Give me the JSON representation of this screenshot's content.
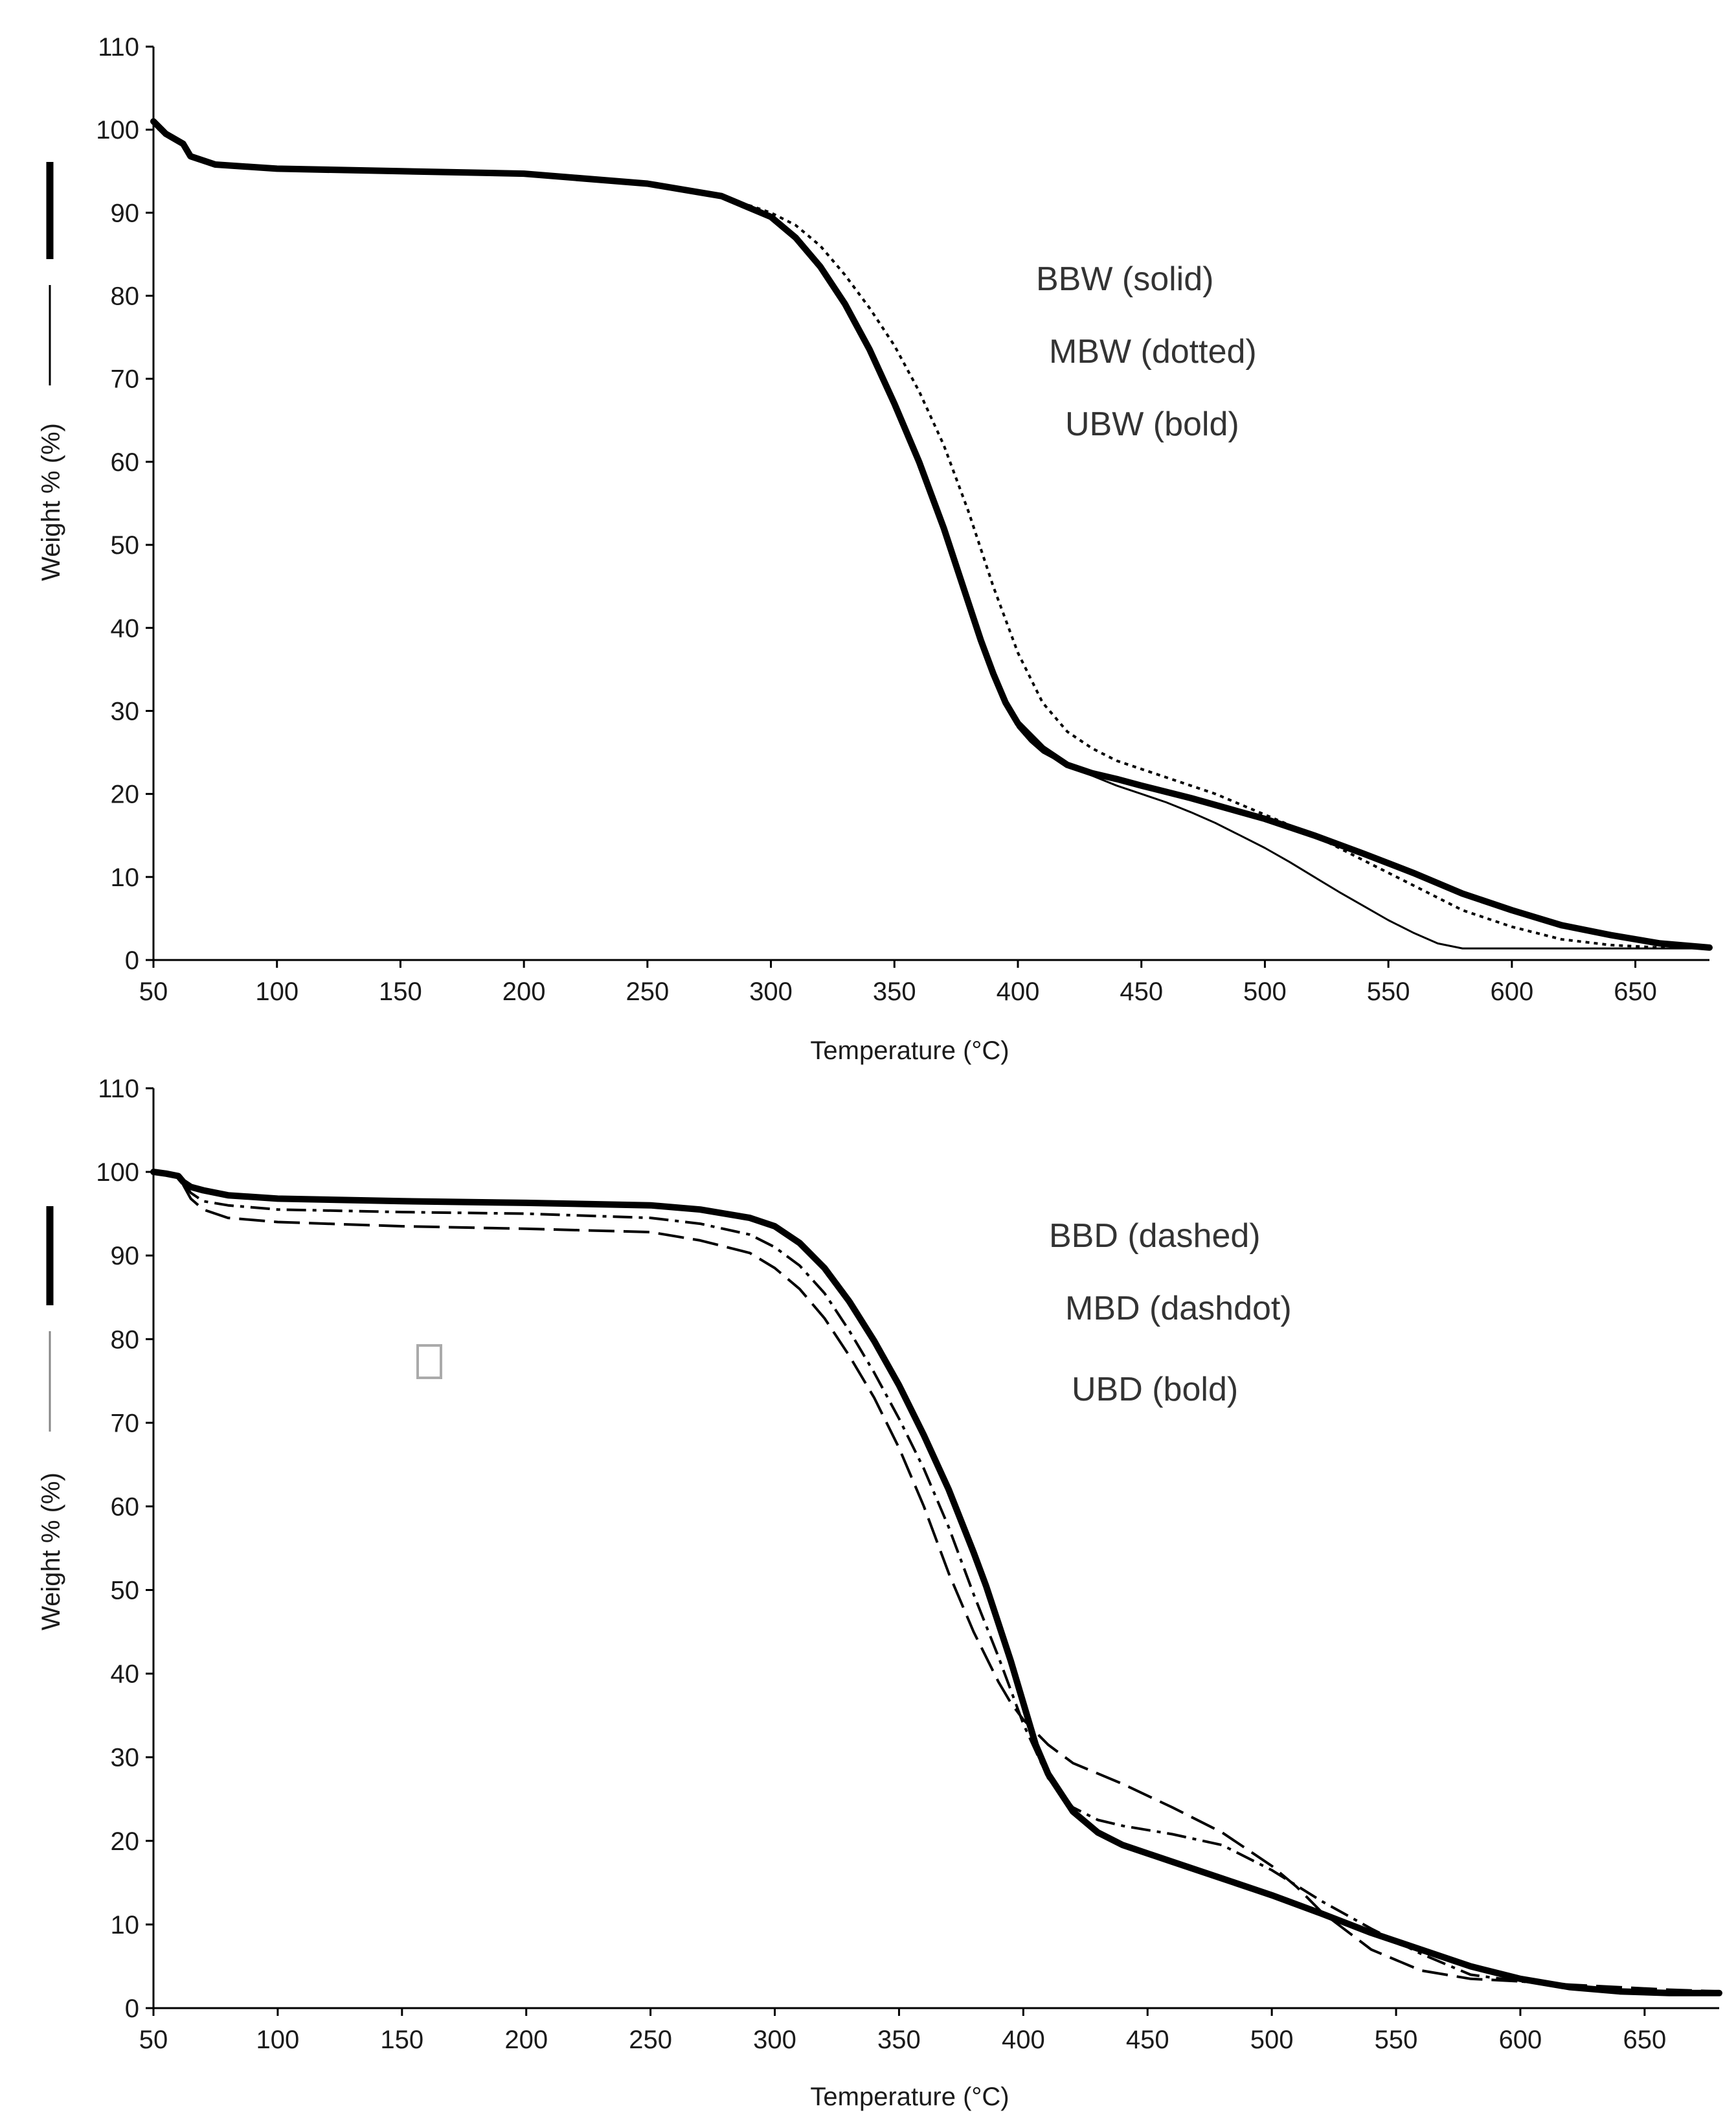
{
  "colors": {
    "background": "#ffffff",
    "axis": "#000000",
    "series": "#000000",
    "annotation_text": "#333333"
  },
  "chart_data": [
    {
      "type": "line",
      "title": "",
      "xlabel": "Temperature (°C)",
      "ylabel": "Weight % (%)",
      "xlim": [
        50,
        680
      ],
      "ylim": [
        0,
        110
      ],
      "x_ticks": [
        "50",
        "100",
        "150",
        "200",
        "250",
        "300",
        "350",
        "400",
        "450",
        "500",
        "550",
        "600",
        "650"
      ],
      "y_ticks": [
        "0",
        "10",
        "20",
        "30",
        "40",
        "50",
        "60",
        "70",
        "80",
        "90",
        "100",
        "110"
      ],
      "grid": false,
      "annotations": [
        "BBW (solid)",
        "MBW (dotted)",
        "UBW (bold)"
      ],
      "series": [
        {
          "name": "BBW",
          "style": "solid",
          "x": [
            50,
            52,
            55,
            58,
            62,
            65,
            75,
            100,
            150,
            200,
            250,
            280,
            300,
            310,
            320,
            330,
            340,
            350,
            360,
            370,
            375,
            380,
            385,
            390,
            395,
            400,
            405,
            410,
            415,
            420,
            430,
            440,
            450,
            460,
            470,
            480,
            490,
            500,
            510,
            520,
            530,
            540,
            550,
            560,
            570,
            580,
            585,
            600,
            620,
            650,
            680
          ],
          "y": [
            101,
            100,
            99.5,
            99.3,
            98.3,
            96.8,
            95.8,
            95.3,
            95.0,
            94.7,
            93.5,
            92.0,
            89.5,
            87.0,
            83.5,
            79.0,
            73.5,
            67.0,
            60.0,
            52.0,
            47.5,
            43.0,
            38.5,
            34.0,
            30.5,
            28.0,
            26.3,
            25.0,
            24.2,
            23.5,
            22.2,
            21.0,
            20.0,
            19.0,
            17.8,
            16.5,
            15.0,
            13.5,
            11.8,
            10.0,
            8.2,
            6.5,
            4.8,
            3.3,
            2.0,
            1.4,
            1.4,
            1.4,
            1.4,
            1.4,
            1.4
          ]
        },
        {
          "name": "MBW",
          "style": "dotted",
          "x": [
            50,
            55,
            62,
            65,
            75,
            100,
            150,
            200,
            250,
            280,
            300,
            310,
            320,
            330,
            340,
            350,
            360,
            370,
            380,
            390,
            400,
            410,
            420,
            430,
            440,
            450,
            460,
            470,
            480,
            500,
            520,
            540,
            560,
            580,
            600,
            620,
            640,
            660,
            680
          ],
          "y": [
            101,
            99.5,
            98.3,
            96.8,
            95.8,
            95.3,
            95.0,
            94.7,
            93.5,
            92.0,
            90.0,
            88.5,
            86.0,
            82.5,
            78.5,
            74.0,
            68.5,
            62.0,
            54.0,
            45.0,
            37.0,
            31.0,
            27.5,
            25.5,
            24.0,
            23.0,
            22.0,
            21.0,
            20.0,
            17.5,
            15.0,
            12.0,
            9.0,
            6.0,
            4.0,
            2.5,
            1.8,
            1.5,
            1.5
          ]
        },
        {
          "name": "UBW",
          "style": "bold",
          "x": [
            50,
            55,
            62,
            65,
            75,
            100,
            150,
            200,
            250,
            280,
            300,
            310,
            320,
            330,
            340,
            350,
            360,
            370,
            375,
            380,
            385,
            390,
            395,
            400,
            410,
            420,
            430,
            440,
            450,
            470,
            500,
            520,
            540,
            560,
            580,
            600,
            620,
            640,
            660,
            680
          ],
          "y": [
            101,
            99.5,
            98.3,
            96.8,
            95.8,
            95.3,
            95.0,
            94.7,
            93.5,
            92.0,
            89.5,
            87.0,
            83.5,
            79.0,
            73.5,
            67.0,
            60.0,
            52.0,
            47.5,
            43.0,
            38.5,
            34.5,
            31.0,
            28.5,
            25.5,
            23.5,
            22.5,
            21.8,
            21.0,
            19.5,
            17.0,
            15.0,
            12.8,
            10.5,
            8.0,
            6.0,
            4.2,
            3.0,
            2.0,
            1.5
          ]
        }
      ]
    },
    {
      "type": "line",
      "title": "",
      "xlabel": "Temperature (°C)",
      "ylabel": "Weight % (%)",
      "xlim": [
        50,
        680
      ],
      "ylim": [
        0,
        110
      ],
      "x_ticks": [
        "50",
        "100",
        "150",
        "200",
        "250",
        "300",
        "350",
        "400",
        "450",
        "500",
        "550",
        "600",
        "650"
      ],
      "y_ticks": [
        "0",
        "10",
        "20",
        "30",
        "40",
        "50",
        "60",
        "70",
        "80",
        "90",
        "100",
        "110"
      ],
      "grid": false,
      "annotations": [
        "BBD (dashed)",
        "MBD (dashdot)",
        "UBD (bold)"
      ],
      "series": [
        {
          "name": "BBD",
          "style": "dashed",
          "x": [
            50,
            55,
            60,
            65,
            70,
            80,
            100,
            150,
            200,
            250,
            270,
            290,
            300,
            310,
            320,
            330,
            340,
            350,
            360,
            370,
            380,
            390,
            395,
            400,
            410,
            420,
            440,
            460,
            480,
            500,
            510,
            520,
            540,
            560,
            580,
            600,
            620,
            640,
            660,
            680
          ],
          "y": [
            100,
            99.8,
            99.5,
            96.8,
            95.5,
            94.5,
            94.0,
            93.5,
            93.2,
            92.8,
            91.8,
            90.3,
            88.5,
            86.0,
            82.5,
            78.0,
            73.0,
            67.0,
            60.0,
            52.0,
            45.0,
            39.0,
            36.5,
            34.5,
            31.5,
            29.3,
            26.8,
            24.0,
            21.0,
            17.0,
            14.5,
            11.5,
            7.0,
            4.5,
            3.5,
            3.2,
            2.8,
            2.5,
            2.2,
            2.0
          ]
        },
        {
          "name": "MBD",
          "style": "dashdot",
          "x": [
            50,
            55,
            60,
            65,
            70,
            80,
            100,
            150,
            200,
            250,
            270,
            290,
            300,
            310,
            320,
            330,
            340,
            350,
            360,
            370,
            380,
            390,
            400,
            410,
            420,
            430,
            440,
            460,
            480,
            500,
            520,
            540,
            560,
            580,
            600,
            620,
            640,
            660,
            680
          ],
          "y": [
            100,
            99.8,
            99.5,
            97.5,
            96.5,
            96.0,
            95.5,
            95.2,
            95.0,
            94.5,
            93.8,
            92.5,
            91.0,
            88.8,
            85.5,
            81.0,
            76.0,
            70.5,
            64.5,
            57.5,
            49.5,
            42.0,
            34.0,
            27.5,
            24.0,
            22.5,
            21.8,
            20.8,
            19.5,
            16.5,
            12.8,
            9.5,
            6.5,
            4.0,
            3.2,
            2.6,
            2.2,
            2.0,
            2.0
          ]
        },
        {
          "name": "UBD",
          "style": "bold",
          "x": [
            50,
            55,
            60,
            62,
            65,
            70,
            80,
            100,
            150,
            200,
            250,
            270,
            290,
            300,
            310,
            320,
            330,
            340,
            350,
            360,
            370,
            380,
            385,
            390,
            395,
            400,
            405,
            410,
            420,
            430,
            440,
            460,
            480,
            500,
            520,
            540,
            560,
            580,
            600,
            620,
            640,
            660,
            680
          ],
          "y": [
            100,
            99.8,
            99.5,
            98.8,
            98.2,
            97.8,
            97.2,
            96.8,
            96.5,
            96.3,
            96.0,
            95.5,
            94.5,
            93.5,
            91.5,
            88.5,
            84.5,
            79.8,
            74.5,
            68.5,
            62.0,
            54.5,
            50.5,
            46.0,
            41.5,
            36.5,
            31.5,
            28.0,
            23.5,
            21.0,
            19.5,
            17.5,
            15.5,
            13.5,
            11.3,
            9.0,
            7.0,
            5.0,
            3.5,
            2.5,
            2.0,
            1.8,
            1.8
          ]
        }
      ]
    }
  ]
}
